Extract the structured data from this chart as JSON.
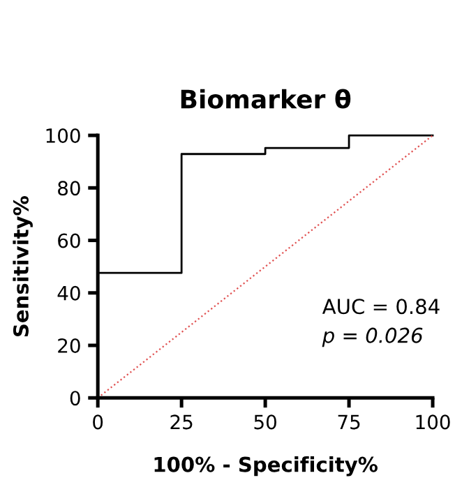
{
  "chart_data": {
    "type": "line",
    "title": "Biomarker θ",
    "xlabel": "100% - Specificity%",
    "ylabel": "Sensitivity%",
    "series": [
      {
        "color": "#000000",
        "line_style": "solid",
        "x": [
          0,
          0,
          25,
          25,
          50,
          50,
          75,
          75,
          100
        ],
        "values": [
          0,
          47.6,
          47.6,
          92.9,
          92.9,
          95.2,
          95.2,
          100,
          100
        ]
      },
      {
        "color": "#e05050",
        "line_style": "dotted",
        "x": [
          0,
          100
        ],
        "values": [
          0,
          100
        ]
      }
    ],
    "xlim": [
      0,
      100
    ],
    "ylim": [
      0,
      100
    ],
    "xticks": [
      0,
      25,
      50,
      75,
      100
    ],
    "yticks": [
      0,
      20,
      40,
      60,
      80,
      100
    ],
    "grid": false,
    "legend": false,
    "marker": "none",
    "annotations": [
      "AUC = 0.84",
      "p = 0.026"
    ]
  }
}
